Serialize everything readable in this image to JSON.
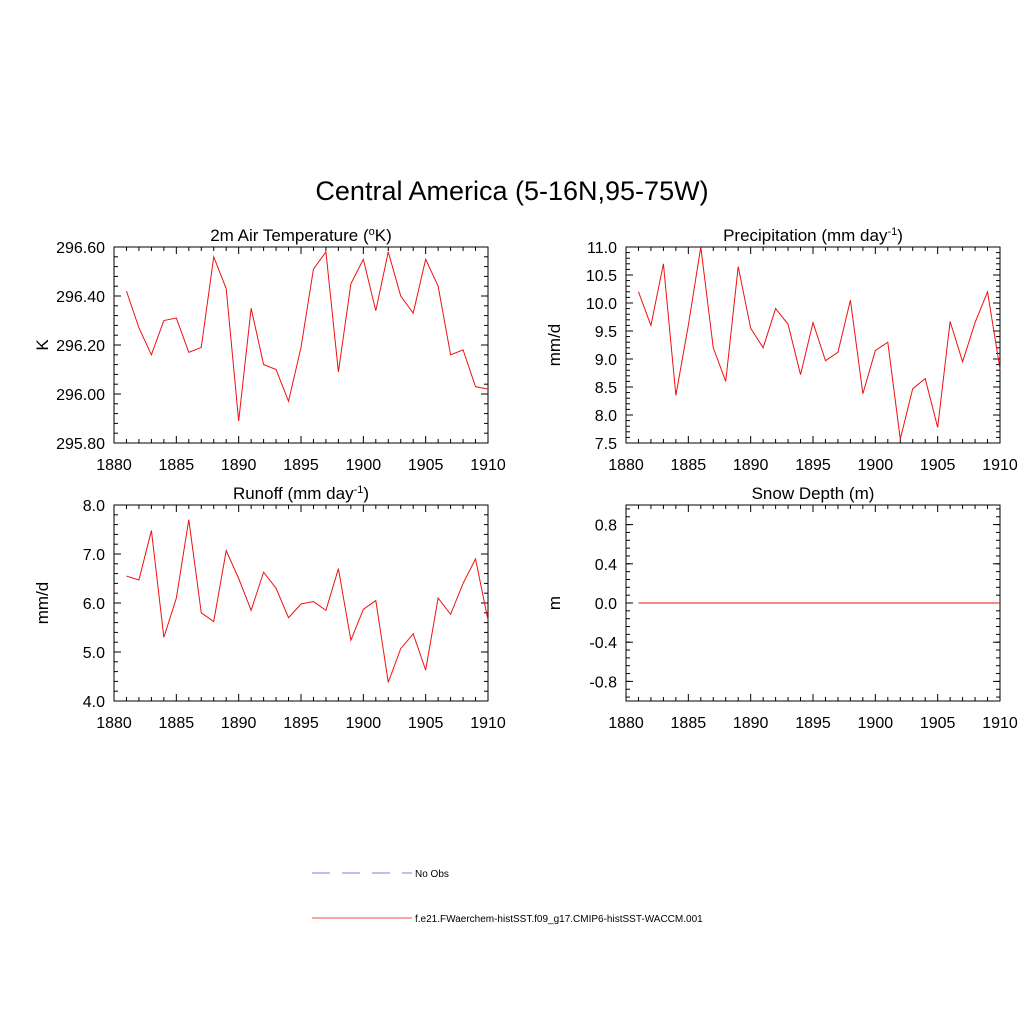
{
  "figure": {
    "title": "Central America (5-16N,95-75W)"
  },
  "legend": {
    "entries": [
      {
        "label": "No Obs",
        "color": "#9999dd",
        "style": "dashed"
      },
      {
        "label": "f.e21.FWaerchem-histSST.f09_g17.CMIP6-histSST-WACCM.001",
        "color": "#ff4444",
        "style": "solid"
      }
    ]
  },
  "chart_data": [
    {
      "type": "line",
      "title": "2m Air Temperature (",
      "title_sup": "o",
      "title_after": "K)",
      "ylabel": "K",
      "xlim": [
        1880,
        1910
      ],
      "ylim": [
        295.8,
        296.6
      ],
      "xticks": [
        1880,
        1885,
        1890,
        1895,
        1900,
        1905,
        1910
      ],
      "yticks": [
        295.8,
        296.0,
        296.2,
        296.4,
        296.6
      ],
      "ytick_labels": [
        "295.80",
        "296.00",
        "296.20",
        "296.40",
        "296.60"
      ],
      "series": [
        {
          "color": "#ee1111",
          "x": [
            1881,
            1882,
            1883,
            1884,
            1885,
            1886,
            1887,
            1888,
            1889,
            1890,
            1891,
            1892,
            1893,
            1894,
            1895,
            1896,
            1897,
            1898,
            1899,
            1900,
            1901,
            1902,
            1903,
            1904,
            1905,
            1906,
            1907,
            1908,
            1909,
            1910
          ],
          "values": [
            296.42,
            296.27,
            296.16,
            296.3,
            296.31,
            296.17,
            296.19,
            296.56,
            296.43,
            295.89,
            296.35,
            296.12,
            296.1,
            295.97,
            296.19,
            296.51,
            296.58,
            296.09,
            296.45,
            296.55,
            296.34,
            296.58,
            296.4,
            296.33,
            296.55,
            296.44,
            296.16,
            296.18,
            296.03,
            296.02
          ]
        }
      ]
    },
    {
      "type": "line",
      "title": "Precipitation (mm day",
      "title_sup": "-1",
      "title_after": ")",
      "ylabel": "mm/d",
      "xlim": [
        1880,
        1910
      ],
      "ylim": [
        7.5,
        11.0
      ],
      "xticks": [
        1880,
        1885,
        1890,
        1895,
        1900,
        1905,
        1910
      ],
      "yticks": [
        7.5,
        8.0,
        8.5,
        9.0,
        9.5,
        10.0,
        10.5,
        11.0
      ],
      "ytick_labels": [
        "7.5",
        "8.0",
        "8.5",
        "9.0",
        "9.5",
        "10.0",
        "10.5",
        "11.0"
      ],
      "series": [
        {
          "color": "#ee1111",
          "x": [
            1881,
            1882,
            1883,
            1884,
            1885,
            1886,
            1887,
            1888,
            1889,
            1890,
            1891,
            1892,
            1893,
            1894,
            1895,
            1896,
            1897,
            1898,
            1899,
            1900,
            1901,
            1902,
            1903,
            1904,
            1905,
            1906,
            1907,
            1908,
            1909,
            1910
          ],
          "values": [
            10.2,
            9.6,
            10.7,
            8.35,
            9.6,
            11.0,
            9.2,
            8.6,
            10.65,
            9.55,
            9.2,
            9.9,
            9.62,
            8.72,
            9.65,
            8.97,
            9.12,
            10.05,
            8.38,
            9.15,
            9.3,
            7.57,
            8.47,
            8.65,
            7.78,
            9.67,
            8.95,
            9.65,
            10.2,
            8.82
          ]
        }
      ]
    },
    {
      "type": "line",
      "title": "Runoff (mm day",
      "title_sup": "-1",
      "title_after": ")",
      "ylabel": "mm/d",
      "xlim": [
        1880,
        1910
      ],
      "ylim": [
        4.0,
        8.0
      ],
      "xticks": [
        1880,
        1885,
        1890,
        1895,
        1900,
        1905,
        1910
      ],
      "yticks": [
        4.0,
        5.0,
        6.0,
        7.0,
        8.0
      ],
      "ytick_labels": [
        "4.0",
        "5.0",
        "6.0",
        "7.0",
        "8.0"
      ],
      "series": [
        {
          "color": "#ee1111",
          "x": [
            1881,
            1882,
            1883,
            1884,
            1885,
            1886,
            1887,
            1888,
            1889,
            1890,
            1891,
            1892,
            1893,
            1894,
            1895,
            1896,
            1897,
            1898,
            1899,
            1900,
            1901,
            1902,
            1903,
            1904,
            1905,
            1906,
            1907,
            1908,
            1909,
            1910
          ],
          "values": [
            6.55,
            6.47,
            7.48,
            5.3,
            6.1,
            7.7,
            5.8,
            5.62,
            7.07,
            6.5,
            5.85,
            6.63,
            6.3,
            5.7,
            5.98,
            6.03,
            5.85,
            6.7,
            5.24,
            5.87,
            6.05,
            4.38,
            5.07,
            5.37,
            4.63,
            6.1,
            5.77,
            6.4,
            6.9,
            5.65
          ]
        }
      ]
    },
    {
      "type": "line",
      "title": "Snow Depth (m)",
      "title_sup": "",
      "title_after": "",
      "ylabel": "m",
      "xlim": [
        1880,
        1910
      ],
      "ylim": [
        -1.0,
        1.0
      ],
      "xticks": [
        1880,
        1885,
        1890,
        1895,
        1900,
        1905,
        1910
      ],
      "yticks": [
        -0.8,
        -0.4,
        0.0,
        0.4,
        0.8
      ],
      "ytick_labels": [
        "-0.8",
        "-0.4",
        "0.0",
        "0.4",
        "0.8"
      ],
      "series": [
        {
          "color": "#ee1111",
          "x": [
            1881,
            1910
          ],
          "values": [
            0.0,
            0.0
          ]
        }
      ]
    }
  ]
}
